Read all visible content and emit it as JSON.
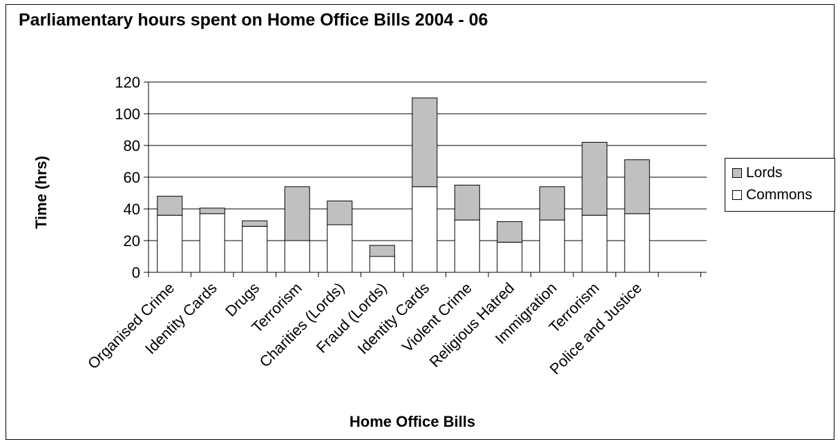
{
  "chart_data": {
    "type": "bar",
    "stacked": true,
    "title": "Parliamentary hours spent on Home Office Bills 2004 - 06",
    "xlabel": "Home Office Bills",
    "ylabel": "Time (hrs)",
    "ylim": [
      0,
      120
    ],
    "yticks": [
      0,
      20,
      40,
      60,
      80,
      100,
      120
    ],
    "grid": true,
    "legend_position": "right",
    "categories": [
      "Organised Crime",
      "Identity Cards",
      "Drugs",
      "Terrorism",
      "Charities (Lords)",
      "Fraud (Lords)",
      "Identity Cards",
      "Violent Crime",
      "Religious Hatred",
      "Immigration",
      "Terrorism",
      "Police and Justice"
    ],
    "series": [
      {
        "name": "Commons",
        "color": "#ffffff",
        "values": [
          36,
          37,
          29,
          20,
          30,
          10,
          54,
          33,
          19,
          33,
          36,
          37
        ]
      },
      {
        "name": "Lords",
        "color": "#c0c0c0",
        "values": [
          12,
          3.5,
          3.5,
          34,
          15,
          7,
          56,
          22,
          13,
          21,
          46,
          34
        ]
      }
    ]
  }
}
